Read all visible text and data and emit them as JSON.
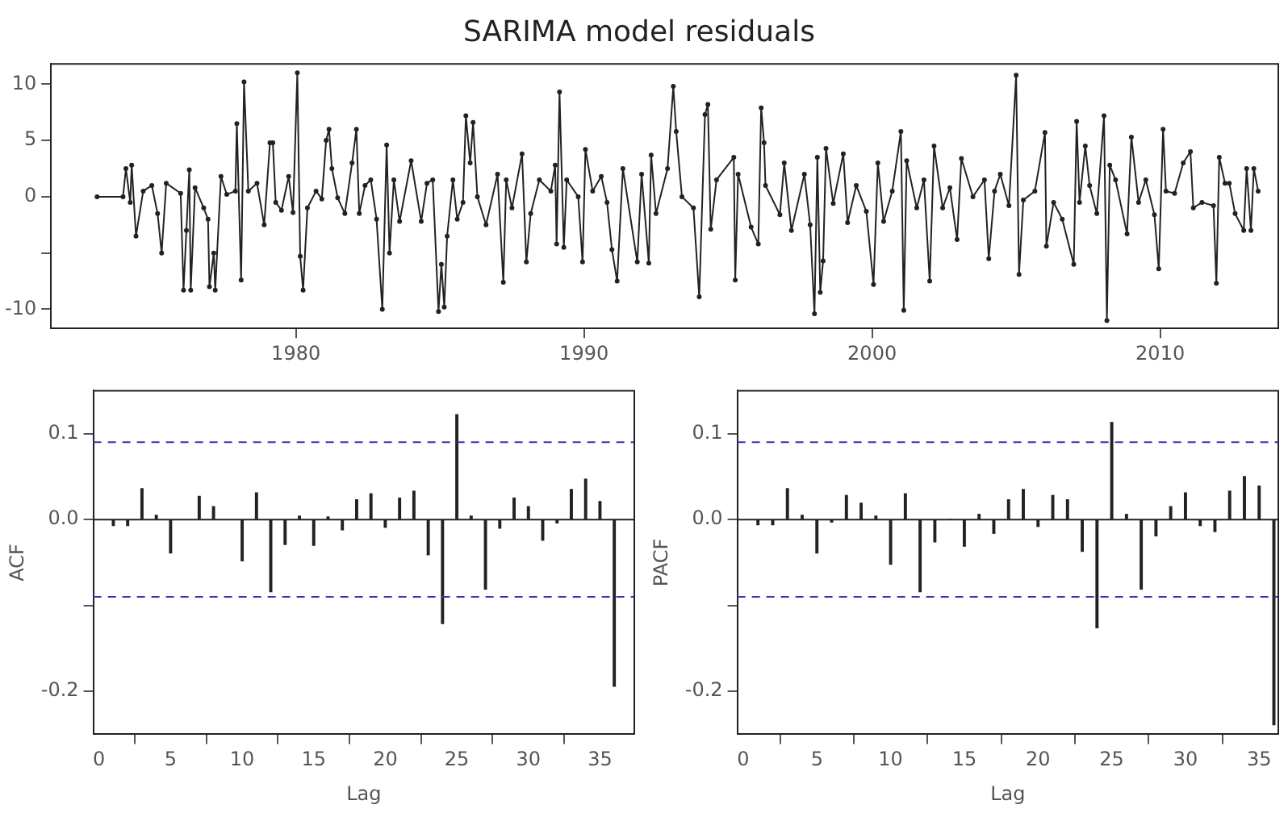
{
  "chart_data": [
    {
      "type": "line",
      "title": "SARIMA model residuals",
      "color": "#222222",
      "marker": "circle",
      "line_style": "solid",
      "x": [
        1973.1,
        1974.0,
        1974.1,
        1974.25,
        1974.3,
        1974.45,
        1974.7,
        1975.0,
        1975.2,
        1975.34,
        1975.5,
        1976.0,
        1976.1,
        1976.2,
        1976.3,
        1976.35,
        1976.5,
        1976.8,
        1976.95,
        1977.0,
        1977.15,
        1977.2,
        1977.4,
        1977.6,
        1977.9,
        1977.95,
        1978.1,
        1978.2,
        1978.35,
        1978.65,
        1978.9,
        1979.1,
        1979.2,
        1979.3,
        1979.5,
        1979.75,
        1979.9,
        1980.05,
        1980.15,
        1980.25,
        1980.4,
        1980.7,
        1980.9,
        1981.05,
        1981.15,
        1981.25,
        1981.45,
        1981.7,
        1981.95,
        1982.1,
        1982.2,
        1982.4,
        1982.6,
        1982.8,
        1983.0,
        1983.15,
        1983.25,
        1983.4,
        1983.6,
        1984.0,
        1984.35,
        1984.55,
        1984.75,
        1984.95,
        1985.05,
        1985.15,
        1985.25,
        1985.45,
        1985.6,
        1985.8,
        1985.9,
        1986.05,
        1986.15,
        1986.3,
        1986.6,
        1987.0,
        1987.2,
        1987.3,
        1987.5,
        1987.85,
        1988.0,
        1988.15,
        1988.45,
        1988.85,
        1989.0,
        1989.05,
        1989.15,
        1989.3,
        1989.4,
        1989.8,
        1989.95,
        1990.05,
        1990.3,
        1990.6,
        1990.8,
        1990.97,
        1991.15,
        1991.35,
        1991.85,
        1992.0,
        1992.25,
        1992.33,
        1992.5,
        1992.9,
        1993.1,
        1993.2,
        1993.4,
        1993.8,
        1994.0,
        1994.2,
        1994.3,
        1994.4,
        1994.6,
        1995.2,
        1995.25,
        1995.35,
        1995.8,
        1996.05,
        1996.15,
        1996.25,
        1996.3,
        1996.8,
        1996.95,
        1997.2,
        1997.65,
        1997.85,
        1998.0,
        1998.1,
        1998.2,
        1998.3,
        1998.4,
        1998.65,
        1999.0,
        1999.15,
        1999.45,
        1999.8,
        2000.05,
        2000.2,
        2000.4,
        2000.7,
        2001.0,
        2001.1,
        2001.2,
        2001.55,
        2001.8,
        2002.0,
        2002.15,
        2002.45,
        2002.7,
        2002.95,
        2003.1,
        2003.5,
        2003.9,
        2004.05,
        2004.25,
        2004.45,
        2004.75,
        2005.0,
        2005.1,
        2005.25,
        2005.65,
        2006.0,
        2006.05,
        2006.3,
        2006.6,
        2007.0,
        2007.1,
        2007.2,
        2007.4,
        2007.55,
        2007.8,
        2008.05,
        2008.15,
        2008.25,
        2008.45,
        2008.85,
        2009.0,
        2009.25,
        2009.5,
        2009.8,
        2009.95,
        2010.1,
        2010.2,
        2010.5,
        2010.8,
        2011.05,
        2011.15,
        2011.45,
        2011.85,
        2011.95,
        2012.05,
        2012.25,
        2012.4,
        2012.6,
        2012.9,
        2013.0,
        2013.15,
        2013.25,
        2013.4
      ],
      "values": [
        0,
        0,
        2.5,
        -0.5,
        2.8,
        -3.5,
        0.5,
        1.0,
        -1.5,
        -5.0,
        1.2,
        0.3,
        -8.3,
        -3,
        2.4,
        -8.3,
        0.8,
        -1,
        -2,
        -8,
        -5,
        -8.3,
        1.8,
        0.2,
        0.5,
        6.5,
        -7.4,
        10.2,
        0.5,
        1.2,
        -2.5,
        4.8,
        4.8,
        -0.5,
        -1.2,
        1.8,
        -1.4,
        11,
        -5.3,
        -8.3,
        -1,
        0.5,
        -0.2,
        5.0,
        6.0,
        2.5,
        -0.1,
        -1.5,
        3.0,
        6.0,
        -1.5,
        1,
        1.5,
        -2,
        -10,
        4.6,
        -5,
        1.5,
        -2.2,
        3.2,
        -2.2,
        1.2,
        1.5,
        -10.2,
        -6,
        -9.8,
        -3.5,
        1.5,
        -2,
        -0.5,
        7.2,
        3,
        6.6,
        0,
        -2.5,
        2.0,
        -7.6,
        1.5,
        -1,
        3.8,
        -5.8,
        -1.5,
        1.5,
        0.5,
        2.8,
        -4.2,
        9.3,
        -4.5,
        1.5,
        0,
        -5.8,
        4.2,
        0.5,
        1.8,
        -0.5,
        -4.7,
        -7.5,
        2.5,
        -5.8,
        2,
        -5.9,
        3.7,
        -1.5,
        2.5,
        9.8,
        5.8,
        0,
        -1,
        -8.9,
        7.3,
        8.2,
        -2.9,
        1.5,
        3.5,
        -7.4,
        2,
        -2.7,
        -4.2,
        7.9,
        4.8,
        1,
        -1.6,
        3.0,
        -3.0,
        2.0,
        -2.5,
        -10.4,
        3.5,
        -8.5,
        -5.7,
        4.3,
        -0.6,
        3.8,
        -2.3,
        1,
        -1.3,
        -7.8,
        3.0,
        -2.2,
        0.5,
        5.8,
        -10.1,
        3.2,
        -1,
        1.5,
        -7.5,
        4.5,
        -1,
        0.8,
        -3.8,
        3.4,
        0,
        1.5,
        -5.5,
        0.5,
        2,
        -0.8,
        10.8,
        -6.9,
        -0.3,
        0.5,
        5.7,
        -4.4,
        -0.5,
        -2,
        -6,
        6.7,
        -0.5,
        4.5,
        1,
        -1.5,
        7.2,
        -11,
        2.8,
        1.5,
        -3.3,
        5.3,
        -0.5,
        1.5,
        -1.6,
        -6.4,
        6.0,
        0.5,
        0.3,
        3.0,
        4.0,
        -1.0,
        -0.5,
        -0.8,
        -7.7,
        3.5,
        1.2,
        1.2,
        -1.5,
        -3,
        2.5,
        -3,
        2.5,
        0.5
      ],
      "xlim": [
        1971.5,
        2014.1
      ],
      "xticks": [
        1980,
        1990,
        2000,
        2010
      ],
      "ylim": [
        -11.7,
        11.8
      ],
      "yticks": [
        -10,
        {
          "value": -5,
          "label": null
        },
        0,
        5,
        10
      ]
    },
    {
      "type": "bar",
      "color": "#222222",
      "xlabel": "Lag",
      "ylabel": "ACF",
      "x": [
        1,
        2,
        3,
        4,
        5,
        6,
        7,
        8,
        9,
        10,
        11,
        12,
        13,
        14,
        15,
        16,
        17,
        18,
        19,
        20,
        21,
        22,
        23,
        24,
        25,
        26,
        27,
        28,
        29,
        30,
        31,
        32,
        33,
        34,
        35,
        36
      ],
      "values": [
        -0.007,
        -0.007,
        0.036,
        0.005,
        -0.039,
        null,
        0.027,
        0.015,
        null,
        -0.048,
        0.031,
        -0.084,
        -0.029,
        0.004,
        -0.03,
        0.003,
        -0.012,
        0.023,
        0.03,
        -0.009,
        0.025,
        0.033,
        -0.041,
        -0.121,
        0.122,
        0.004,
        -0.081,
        -0.01,
        0.025,
        0.015,
        -0.024,
        -0.004,
        0.035,
        0.047,
        0.021,
        -0.194
      ],
      "xlim": [
        -0.4,
        37.4
      ],
      "xticks": [
        0,
        5,
        10,
        15,
        20,
        25,
        30,
        35
      ],
      "ylim": [
        -0.25,
        0.15
      ],
      "yticks": [
        {
          "value": -0.2,
          "label": "-0.2"
        },
        {
          "value": -0.1,
          "label": null
        },
        {
          "value": 0,
          "label": "0.0"
        },
        0.1
      ],
      "ref_lines": [
        {
          "axis": "y",
          "value": 0,
          "color": "#222222",
          "line_style": "solid"
        },
        {
          "axis": "y",
          "value": 0.09,
          "color": "#3333bb",
          "line_style": "dashed"
        },
        {
          "axis": "y",
          "value": -0.09,
          "color": "#3333bb",
          "line_style": "dashed"
        }
      ]
    },
    {
      "type": "bar",
      "color": "#222222",
      "xlabel": "Lag",
      "ylabel": "PACF",
      "x": [
        1,
        2,
        3,
        4,
        5,
        6,
        7,
        8,
        9,
        10,
        11,
        12,
        13,
        14,
        15,
        16,
        17,
        18,
        19,
        20,
        21,
        22,
        23,
        24,
        25,
        26,
        27,
        28,
        29,
        30,
        31,
        32,
        33,
        34,
        35,
        36
      ],
      "values": [
        -0.006,
        -0.006,
        0.036,
        0.005,
        -0.039,
        -0.003,
        0.028,
        0.019,
        0.004,
        -0.052,
        0.03,
        -0.084,
        -0.026,
        0,
        -0.031,
        0.006,
        -0.016,
        0.023,
        0.035,
        -0.008,
        0.028,
        0.023,
        -0.037,
        -0.126,
        0.113,
        0.006,
        -0.081,
        -0.019,
        0.015,
        0.031,
        -0.007,
        -0.014,
        0.033,
        0.05,
        0.039,
        -0.239
      ],
      "xlim": [
        -0.4,
        36.3
      ],
      "xticks": [
        0,
        5,
        10,
        15,
        20,
        25,
        30,
        35
      ],
      "ylim": [
        -0.25,
        0.15
      ],
      "yticks": [
        {
          "value": -0.2,
          "label": "-0.2"
        },
        {
          "value": -0.1,
          "label": null
        },
        {
          "value": 0,
          "label": "0.0"
        },
        0.1
      ],
      "ref_lines": [
        {
          "axis": "y",
          "value": 0,
          "color": "#222222",
          "line_style": "solid"
        },
        {
          "axis": "y",
          "value": 0.09,
          "color": "#3333bb",
          "line_style": "dashed"
        },
        {
          "axis": "y",
          "value": -0.09,
          "color": "#3333bb",
          "line_style": "dashed"
        }
      ]
    }
  ]
}
